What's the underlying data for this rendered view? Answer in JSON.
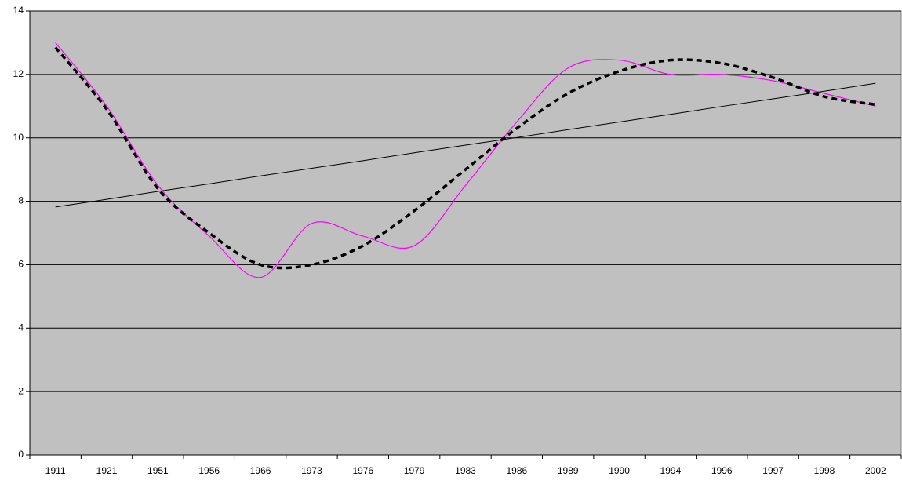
{
  "chart_data": {
    "type": "line",
    "categories": [
      "1911",
      "1921",
      "1951",
      "1956",
      "1966",
      "1973",
      "1976",
      "1979",
      "1983",
      "1986",
      "1989",
      "1990",
      "1994",
      "1996",
      "1997",
      "1998",
      "2002"
    ],
    "series": [
      {
        "color": "#ff00ff",
        "style": "solid",
        "smooth": true,
        "values": [
          13.0,
          11.0,
          8.5,
          6.9,
          5.6,
          7.3,
          6.9,
          6.6,
          8.5,
          10.5,
          12.2,
          12.45,
          12.0,
          12.0,
          11.8,
          11.4,
          11.0
        ]
      },
      {
        "color": "#000000",
        "style": "dashed",
        "smooth": true,
        "values": [
          12.85,
          10.9,
          8.4,
          7.0,
          6.0,
          6.0,
          6.6,
          7.7,
          9.0,
          10.3,
          11.4,
          12.1,
          12.45,
          12.35,
          11.9,
          11.3,
          11.05
        ]
      },
      {
        "color": "#000000",
        "style": "thin",
        "smooth": false,
        "values": [
          7.82,
          8.06,
          8.31,
          8.55,
          8.8,
          9.04,
          9.28,
          9.53,
          9.77,
          10.01,
          10.26,
          10.5,
          10.74,
          10.99,
          11.23,
          11.47,
          11.72
        ]
      }
    ],
    "ylim": [
      0,
      14
    ],
    "yticks": [
      0,
      2,
      4,
      6,
      8,
      10,
      12,
      14
    ],
    "grid": true,
    "background": "#c0c0c0"
  }
}
